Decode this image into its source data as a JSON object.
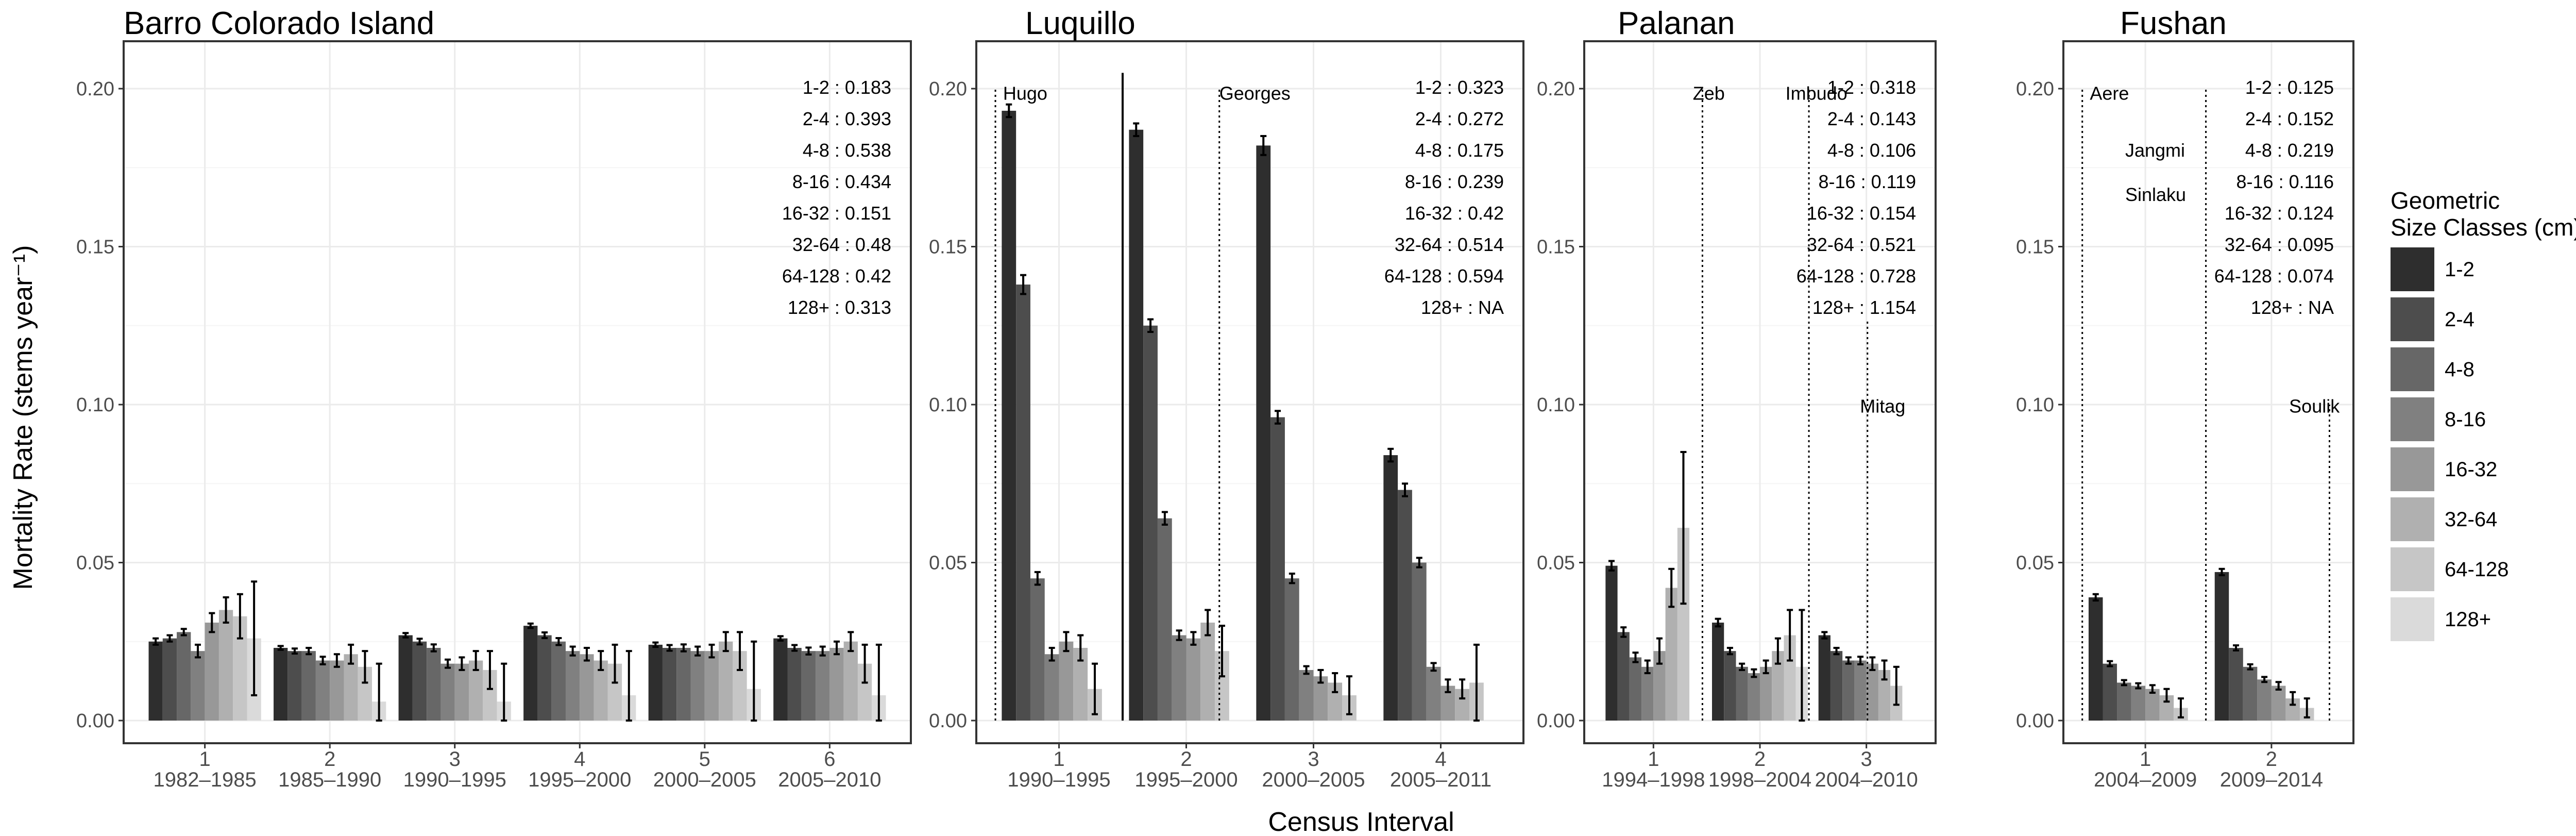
{
  "chart_data": {
    "type": "bar",
    "ylabel": "Mortality Rate (stems year⁻¹)",
    "xlabel": "Census Interval",
    "ylim": [
      0,
      0.205
    ],
    "yticks": [
      "0.00",
      "0.05",
      "0.10",
      "0.15",
      "0.20"
    ],
    "legend": {
      "title_lines": [
        "Geometric",
        "Size Classes (cm)"
      ],
      "labels": [
        "1-2",
        "2-4",
        "4-8",
        "8-16",
        "16-32",
        "32-64",
        "64-128",
        "128+"
      ],
      "colors": [
        "#2e2e2e",
        "#4d4d4d",
        "#676767",
        "#808080",
        "#989898",
        "#b0b0b0",
        "#c6c6c6",
        "#dadada"
      ]
    },
    "panels": [
      {
        "title": "Barro Colorado Island",
        "groups": [
          {
            "index": "1",
            "label": "1982–1985",
            "values": [
              0.025,
              0.026,
              0.028,
              0.022,
              0.031,
              0.035,
              0.033,
              0.026
            ],
            "errors": [
              0.001,
              0.001,
              0.001,
              0.002,
              0.003,
              0.004,
              0.007,
              0.018
            ]
          },
          {
            "index": "2",
            "label": "1985–1990",
            "values": [
              0.023,
              0.022,
              0.022,
              0.019,
              0.019,
              0.021,
              0.017,
              0.006
            ],
            "errors": [
              0.0006,
              0.0008,
              0.001,
              0.0012,
              0.002,
              0.003,
              0.005,
              0.012
            ]
          },
          {
            "index": "3",
            "label": "1990–1995",
            "values": [
              0.027,
              0.025,
              0.023,
              0.018,
              0.018,
              0.019,
              0.016,
              0.006
            ],
            "errors": [
              0.0007,
              0.0009,
              0.0011,
              0.0013,
              0.002,
              0.003,
              0.006,
              0.012
            ]
          },
          {
            "index": "4",
            "label": "1995–2000",
            "values": [
              0.03,
              0.027,
              0.025,
              0.022,
              0.021,
              0.019,
              0.018,
              0.008
            ],
            "errors": [
              0.0007,
              0.0009,
              0.0011,
              0.0014,
              0.002,
              0.003,
              0.006,
              0.014
            ]
          },
          {
            "index": "5",
            "label": "2000–2005",
            "values": [
              0.024,
              0.023,
              0.023,
              0.022,
              0.022,
              0.025,
              0.022,
              0.01
            ],
            "errors": [
              0.0007,
              0.0009,
              0.0011,
              0.0014,
              0.002,
              0.003,
              0.006,
              0.015
            ]
          },
          {
            "index": "6",
            "label": "2005–2010",
            "values": [
              0.026,
              0.023,
              0.022,
              0.022,
              0.023,
              0.025,
              0.018,
              0.008
            ],
            "errors": [
              0.0007,
              0.0009,
              0.0011,
              0.0014,
              0.002,
              0.003,
              0.006,
              0.016
            ]
          }
        ],
        "annotations": [
          "1-2 : 0.183",
          "2-4 : 0.393",
          "4-8 : 0.538",
          "8-16 : 0.434",
          "16-32 : 0.151",
          "32-64 : 0.48",
          "64-128 : 0.42",
          "128+ : 0.313"
        ],
        "events": []
      },
      {
        "title": "Luquillo",
        "groups": [
          {
            "index": "1",
            "label": "1990–1995",
            "values": [
              0.193,
              0.138,
              0.045,
              0.021,
              0.025,
              0.023,
              0.01,
              0.0
            ],
            "errors": [
              0.002,
              0.003,
              0.002,
              0.002,
              0.003,
              0.004,
              0.008,
              0.0
            ]
          },
          {
            "index": "2",
            "label": "1995–2000",
            "values": [
              0.187,
              0.125,
              0.064,
              0.027,
              0.026,
              0.031,
              0.022,
              0.0
            ],
            "errors": [
              0.002,
              0.002,
              0.002,
              0.0015,
              0.002,
              0.004,
              0.008,
              0.0
            ]
          },
          {
            "index": "3",
            "label": "2000–2005",
            "values": [
              0.182,
              0.096,
              0.045,
              0.016,
              0.014,
              0.012,
              0.008,
              0.0
            ],
            "errors": [
              0.003,
              0.002,
              0.0015,
              0.0012,
              0.002,
              0.003,
              0.006,
              0.0
            ]
          },
          {
            "index": "4",
            "label": "2005–2011",
            "values": [
              0.084,
              0.073,
              0.05,
              0.017,
              0.011,
              0.01,
              0.012,
              0.0
            ],
            "errors": [
              0.002,
              0.002,
              0.0015,
              0.0012,
              0.002,
              0.003,
              0.012,
              0.0
            ]
          }
        ],
        "annotations": [
          "1-2 : 0.323",
          "2-4 : 0.272",
          "4-8 : 0.175",
          "8-16 : 0.239",
          "16-32 : 0.42",
          "32-64 : 0.514",
          "64-128 : 0.594",
          "128+ : NA"
        ],
        "events": [
          {
            "name": "Hugo",
            "at": 0.0,
            "height": 0.2,
            "label_at": 0.06,
            "label_y": 0.202,
            "style": "dotted"
          },
          {
            "name": "",
            "at": 1.0,
            "height": 0.205,
            "label_at": 0,
            "label_y": 0,
            "style": "solid"
          },
          {
            "name": "Georges",
            "at": 1.76,
            "height": 0.2,
            "label_at": 1.76,
            "label_y": 0.202,
            "style": "dotted"
          }
        ]
      },
      {
        "title": "Palanan",
        "groups": [
          {
            "index": "1",
            "label": "1994–1998",
            "values": [
              0.049,
              0.028,
              0.02,
              0.017,
              0.022,
              0.042,
              0.061,
              0.0
            ],
            "errors": [
              0.0015,
              0.0015,
              0.0015,
              0.002,
              0.004,
              0.006,
              0.024,
              0.0
            ]
          },
          {
            "index": "2",
            "label": "1998–2004",
            "values": [
              0.031,
              0.022,
              0.017,
              0.015,
              0.017,
              0.022,
              0.027,
              0.017
            ],
            "errors": [
              0.0012,
              0.001,
              0.001,
              0.0012,
              0.002,
              0.004,
              0.008,
              0.018
            ]
          },
          {
            "index": "3",
            "label": "2004–2010",
            "values": [
              0.027,
              0.022,
              0.019,
              0.019,
              0.018,
              0.016,
              0.011,
              0.0
            ],
            "errors": [
              0.001,
              0.001,
              0.001,
              0.0012,
              0.002,
              0.003,
              0.006,
              0.0
            ]
          }
        ],
        "annotations": [
          "1-2 : 0.318",
          "2-4 : 0.143",
          "4-8 : 0.106",
          "8-16 : 0.119",
          "16-32 : 0.154",
          "32-64 : 0.521",
          "64-128 : 0.728",
          "128+ : 1.154"
        ],
        "events": [
          {
            "name": "Zeb",
            "at": 0.96,
            "height": 0.2,
            "label_at": 0.87,
            "label_y": 0.202,
            "style": "dotted"
          },
          {
            "name": "Imbudo",
            "at": 1.96,
            "height": 0.2,
            "label_at": 1.74,
            "label_y": 0.202,
            "style": "dotted"
          },
          {
            "name": "Mitag",
            "at": 2.51,
            "height": 0.127,
            "label_at": 2.44,
            "label_y": 0.103,
            "style": "dotted"
          }
        ]
      },
      {
        "title": "Fushan",
        "groups": [
          {
            "index": "1",
            "label": "2004–2009",
            "values": [
              0.039,
              0.018,
              0.012,
              0.011,
              0.01,
              0.008,
              0.004,
              0.0
            ],
            "errors": [
              0.001,
              0.0008,
              0.0008,
              0.0008,
              0.0012,
              0.002,
              0.003,
              0.0
            ]
          },
          {
            "index": "2",
            "label": "2009–2014",
            "values": [
              0.047,
              0.023,
              0.017,
              0.013,
              0.011,
              0.007,
              0.004,
              0.0
            ],
            "errors": [
              0.001,
              0.0008,
              0.0008,
              0.0008,
              0.0012,
              0.002,
              0.003,
              0.0
            ]
          }
        ],
        "annotations": [
          "1-2 : 0.125",
          "2-4 : 0.152",
          "4-8 : 0.219",
          "8-16 : 0.116",
          "16-32 : 0.124",
          "32-64 : 0.095",
          "64-128 : 0.074",
          "128+ : NA"
        ],
        "events": [
          {
            "name": "Aere",
            "at": 0.0,
            "height": 0.2,
            "label_at": 0.06,
            "label_y": 0.202,
            "style": "dotted"
          },
          {
            "name": "Jangmi",
            "at": 0.98,
            "height": 0.2,
            "label_at": 0.34,
            "label_y": 0.184,
            "style": "dotted"
          },
          {
            "name": "Sinlaku",
            "at": 0.98,
            "height": 0.0,
            "label_at": 0.34,
            "label_y": 0.17,
            "style": "none"
          },
          {
            "name": "Soulik",
            "at": 1.96,
            "height": 0.1,
            "label_at": 1.64,
            "label_y": 0.103,
            "style": "dotted"
          }
        ]
      }
    ]
  }
}
